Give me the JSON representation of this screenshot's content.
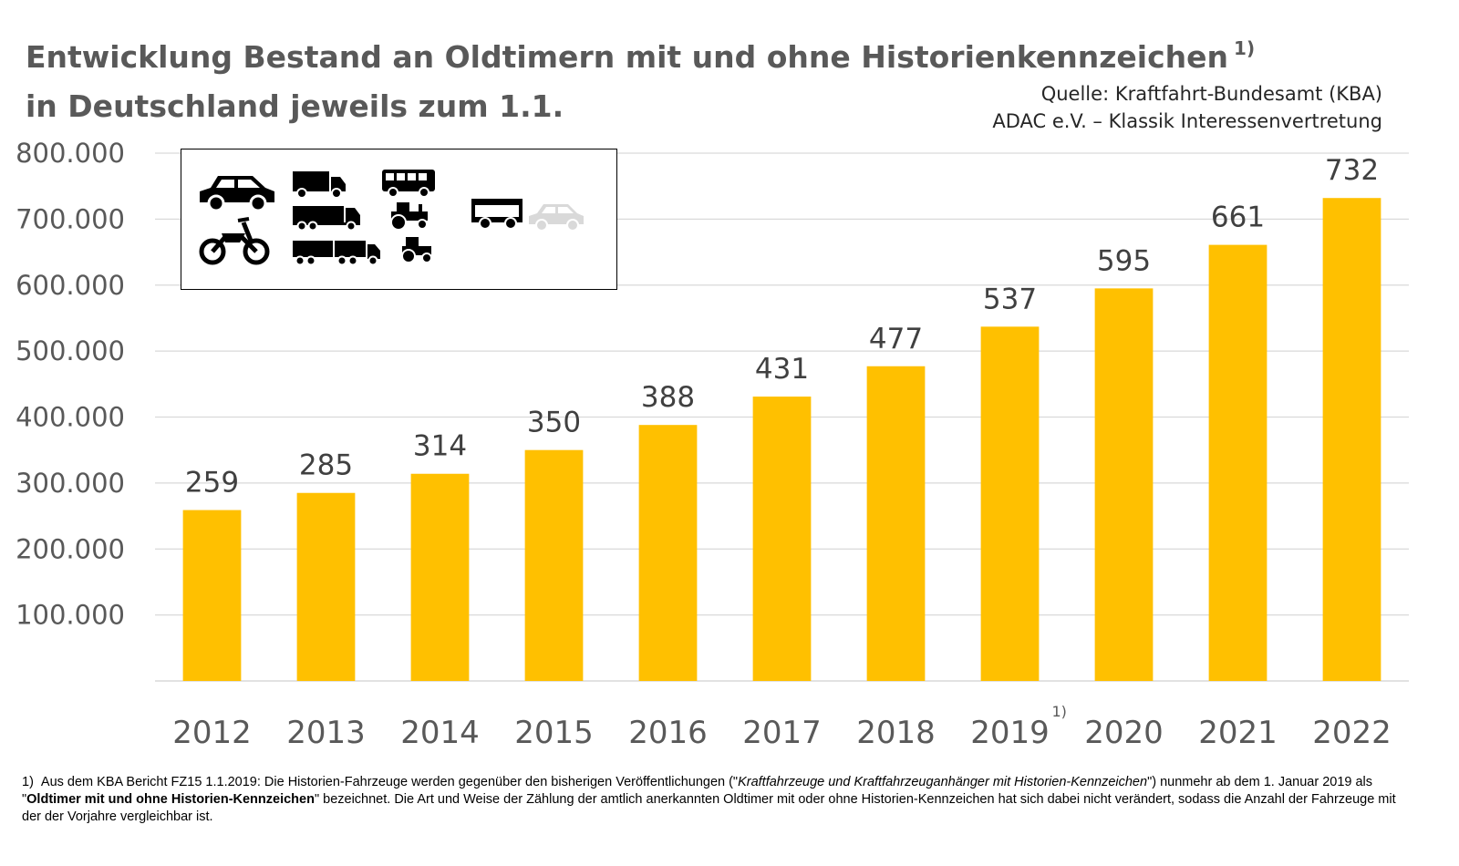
{
  "header": {
    "title_line1": "Entwicklung Bestand an Oldtimern mit und ohne Historienkennzeichen",
    "title_footnote_marker": "1)",
    "title_line2": "in Deutschland jeweils zum 1.1.",
    "source_line1": "Quelle: Kraftfahrt-Bundesamt (KBA)",
    "source_line2": "ADAC e.V. – Klassik Interessenvertretung"
  },
  "legend_box": {
    "icons": [
      "car-icon",
      "motorcycle-icon",
      "truck-icon",
      "semi-truck-icon",
      "truck-trailer-icon",
      "bus-icon",
      "tractor-icon",
      "small-tractor-icon",
      "trailer-icon",
      "faded-car-icon"
    ]
  },
  "colors": {
    "bar": "#FFC000",
    "gridline": "#D9D9D9",
    "axis_text": "#595959",
    "label_text": "#404040",
    "title_text": "#595959"
  },
  "chart_data": {
    "type": "bar",
    "categories": [
      "2012",
      "2013",
      "2014",
      "2015",
      "2016",
      "2017",
      "2018",
      "2019",
      "2020",
      "2021",
      "2022"
    ],
    "values": [
      259000,
      285000,
      314000,
      350000,
      388000,
      431000,
      477000,
      537000,
      595000,
      661000,
      732000
    ],
    "data_labels": [
      "259",
      "285",
      "314",
      "350",
      "388",
      "431",
      "477",
      "537",
      "595",
      "661",
      "732"
    ],
    "category_footnotes": {
      "2019": "1)"
    },
    "y_ticks": [
      100000,
      200000,
      300000,
      400000,
      500000,
      600000,
      700000,
      800000
    ],
    "y_tick_labels": [
      "100.000",
      "200.000",
      "300.000",
      "400.000",
      "500.000",
      "600.000",
      "700.000",
      "800.000"
    ],
    "ylim": [
      0,
      800000
    ],
    "grid": true,
    "legend": "none",
    "title": "Entwicklung Bestand an Oldtimern mit und ohne Historienkennzeichen 1) in Deutschland jeweils zum 1.1.",
    "xlabel": "",
    "ylabel": ""
  },
  "footnote": {
    "marker": "1)",
    "part1": "Aus dem KBA Bericht FZ15 1.1.2019:  Die Historien-Fahrzeuge werden gegenüber den bisherigen Veröffentlichungen  (\"",
    "italic": "Kraftfahrzeuge und Kraftfahrzeuganhänger mit Historien-Kennzeichen",
    "part2": "\") nunmehr ab dem 1. Januar 2019 als  \"",
    "bold": "Oldtimer mit und ohne Historien-Kennzeichen",
    "part3": "\" bezeichnet. Die Art und Weise der Zählung der amtlich anerkannten Oldtimer mit oder ohne Historien-Kennzeichen hat sich dabei nicht verändert, sodass die Anzahl der Fahrzeuge mit der der Vorjahre vergleichbar ist."
  }
}
